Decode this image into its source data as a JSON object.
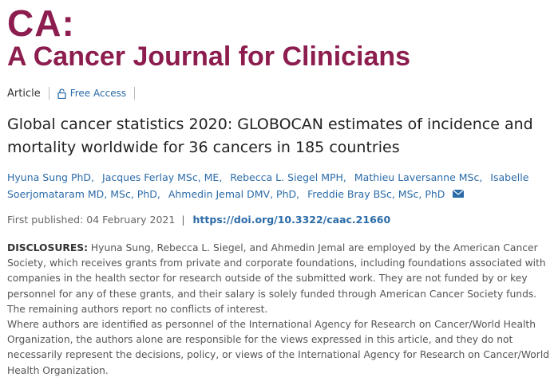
{
  "journal": {
    "line1": "CA:",
    "line2": "A Cancer Journal for Clinicians"
  },
  "article": {
    "type": "Article",
    "access": "Free Access",
    "title": "Global cancer statistics 2020: GLOBOCAN estimates of incidence and mortality worldwide for 36 cancers in 185 countries",
    "authors": [
      "Hyuna Sung PhD,",
      "Jacques Ferlay MSc, ME,",
      "Rebecca L. Siegel MPH,",
      "Mathieu Laversanne MSc,",
      "Isabelle Soerjomataram MD, MSc, PhD,",
      "Ahmedin Jemal DMV, PhD,",
      "Freddie Bray BSc, MSc, PhD"
    ],
    "published_label": "First published:",
    "published_date": "04 February 2021",
    "doi": "https://doi.org/10.3322/caac.21660",
    "disclosures_label": "DISCLOSURES:",
    "disclosures_text": "Hyuna Sung, Rebecca L. Siegel, and Ahmedin Jemal are employed by the American Cancer Society, which receives grants from private and corporate foundations, including foundations associated with companies in the health sector for research outside of the submitted work. They are not funded by or key personnel for any of these grants, and their salary is solely funded through American Cancer Society funds. The remaining authors report no conflicts of interest.",
    "disclaimer": "Where authors are identified as personnel of the International Agency for Research on Cancer/World Health Organization, the authors alone are responsible for the views expressed in this article, and they do not necessarily represent the decisions, policy, or views of the International Agency for Research on Cancer/World Health Organization."
  }
}
